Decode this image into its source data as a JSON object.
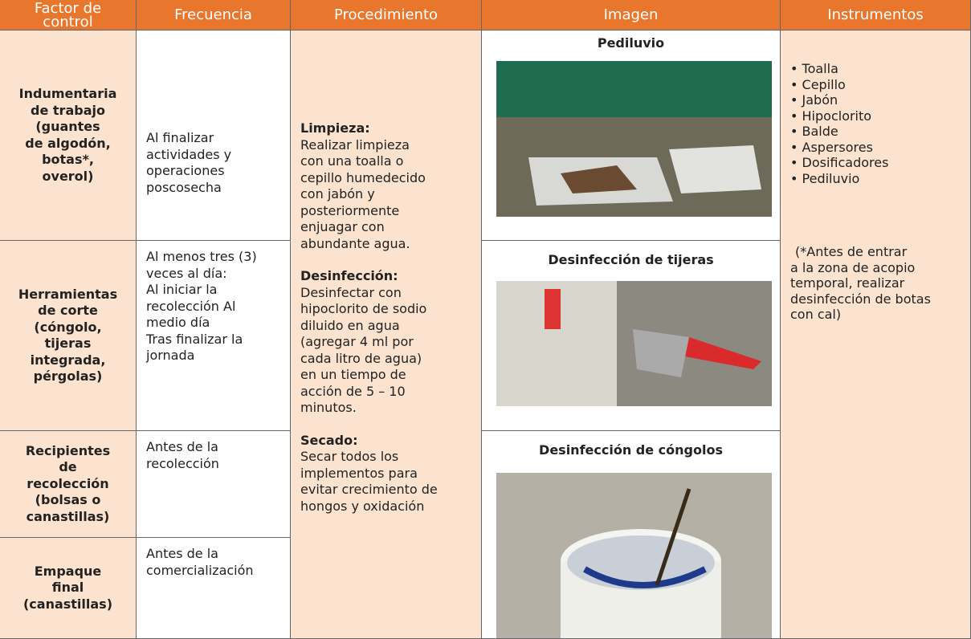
{
  "header": [
    "Factor de control",
    "Frecuencia",
    "Procedimiento",
    "Imagen",
    "Instrumentos"
  ],
  "rows": [
    {
      "factor": [
        "Indumentaria",
        "de trabajo",
        "(guantes",
        "de algodón,",
        "botas*,",
        "overol)"
      ],
      "frequency": [
        "Al finalizar",
        "actividades y",
        "operaciones",
        "poscosecha"
      ]
    },
    {
      "factor": [
        "Herramientas",
        "de corte",
        "(cóngolo,",
        "tijeras",
        "integrada,",
        "pérgolas)"
      ],
      "frequency": [
        "Al menos tres (3)",
        "veces al día:",
        "Al iniciar  la",
        "recolección  Al",
        "medio día",
        "Tras finalizar la",
        "jornada"
      ]
    },
    {
      "factor": [
        "Recipientes",
        "de",
        "recolección",
        "(bolsas o",
        "canastillas)"
      ],
      "frequency": [
        "Antes de la",
        "recolección"
      ]
    },
    {
      "factor": [
        "Empaque",
        "final",
        "(canastillas)"
      ],
      "frequency": [
        "Antes de la",
        "comercialización"
      ]
    }
  ],
  "procedure": [
    {
      "heading": "Limpieza:",
      "lines": [
        "Realizar limpieza",
        "con una toalla o",
        "cepillo humedecido",
        "con jabón y",
        "posteriormente",
        "enjuagar con",
        "abundante agua."
      ]
    },
    {
      "heading": "Desinfección:",
      "lines": [
        "Desinfectar con",
        "hipoclorito de sodio",
        "diluido en agua",
        "(agregar 4 ml por",
        "cada litro de agua)",
        "en un tiempo de",
        "acción de 5 – 10",
        "minutos."
      ]
    },
    {
      "heading": "Secado:",
      "lines": [
        "Secar  todos los",
        "implementos para",
        "evitar crecimiento de",
        "hongos y oxidación"
      ]
    }
  ],
  "images": [
    {
      "caption": "Pediluvio"
    },
    {
      "caption": "Desinfección de tijeras"
    },
    {
      "caption": "Desinfección de cóngolos"
    }
  ],
  "instruments": {
    "items": [
      "• Toalla",
      "• Cepillo",
      "• Jabón",
      "• Hipoclorito",
      "• Balde",
      "• Aspersores",
      "• Dosificadores",
      "• Pediluvio"
    ],
    "note": [
      "(*Antes de entrar",
      "a la zona de acopio",
      "temporal, realizar",
      "desinfección de botas",
      "con cal)"
    ]
  }
}
